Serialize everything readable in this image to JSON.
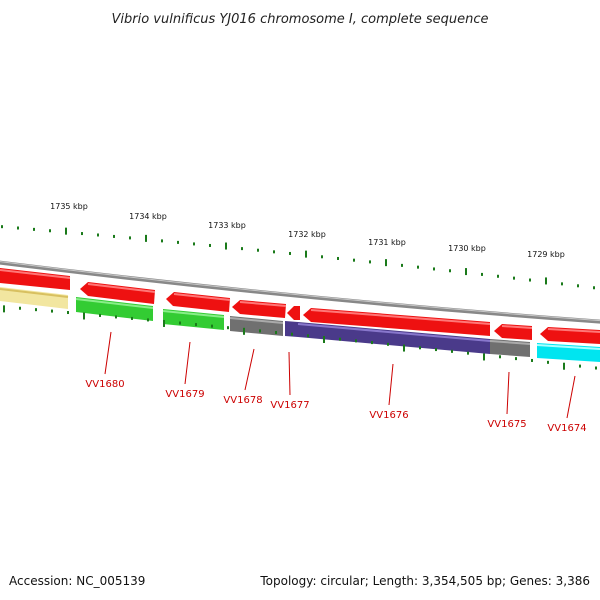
{
  "title": "Vibrio vulnificus YJ016 chromosome I, complete sequence",
  "footer": {
    "accession": "Accession: NC_005139",
    "topology": "Topology: circular; Length: 3,354,505 bp; Genes: 3,386"
  },
  "ruler": {
    "labels": [
      "1735 kbp",
      "1734 kbp",
      "1733 kbp",
      "1732 kbp",
      "1731 kbp",
      "1730 kbp",
      "1729 kbp"
    ]
  },
  "gene_labels": [
    "VV1680",
    "VV1679",
    "VV1678",
    "VV1677",
    "VV1676",
    "VV1675",
    "VV1674"
  ],
  "colors": {
    "forward": "#ee1111",
    "backbone": "#888888",
    "ruler": "#1a7a1a",
    "label": "#cc0000",
    "pale_yellow": "#f2e6a0",
    "green": "#33cc33",
    "gray": "#707070",
    "purple": "#4a3a8a",
    "cyan": "#00e5f0"
  }
}
